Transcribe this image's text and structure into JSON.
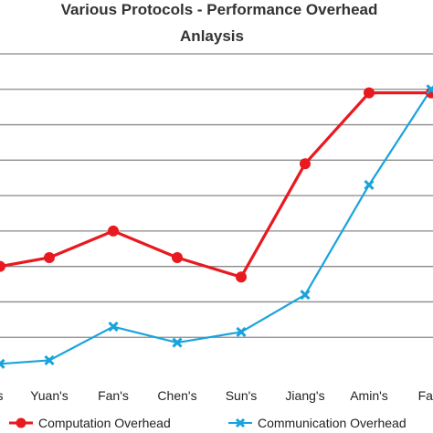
{
  "chart_data": {
    "type": "line",
    "title": "Various Protocols - Performance Overhead",
    "subtitle": "Anlaysis",
    "categories": [
      "s",
      "Yuan's",
      "Fan's",
      "Chen's",
      "Sun's",
      "Jiang's",
      "Amin's",
      "Fara"
    ],
    "series": [
      {
        "name": "Computation Overhead",
        "color": "#e8191f",
        "marker": "circle",
        "values": [
          3.0,
          3.25,
          4.0,
          3.25,
          2.7,
          5.9,
          7.9,
          7.9
        ]
      },
      {
        "name": "Communication Overhead",
        "color": "#19a3dc",
        "marker": "x",
        "values": [
          0.25,
          0.35,
          1.3,
          0.85,
          1.15,
          2.2,
          5.3,
          8.0
        ]
      }
    ],
    "ylim": [
      0,
      9
    ],
    "grid": true,
    "legend": "bottom"
  }
}
